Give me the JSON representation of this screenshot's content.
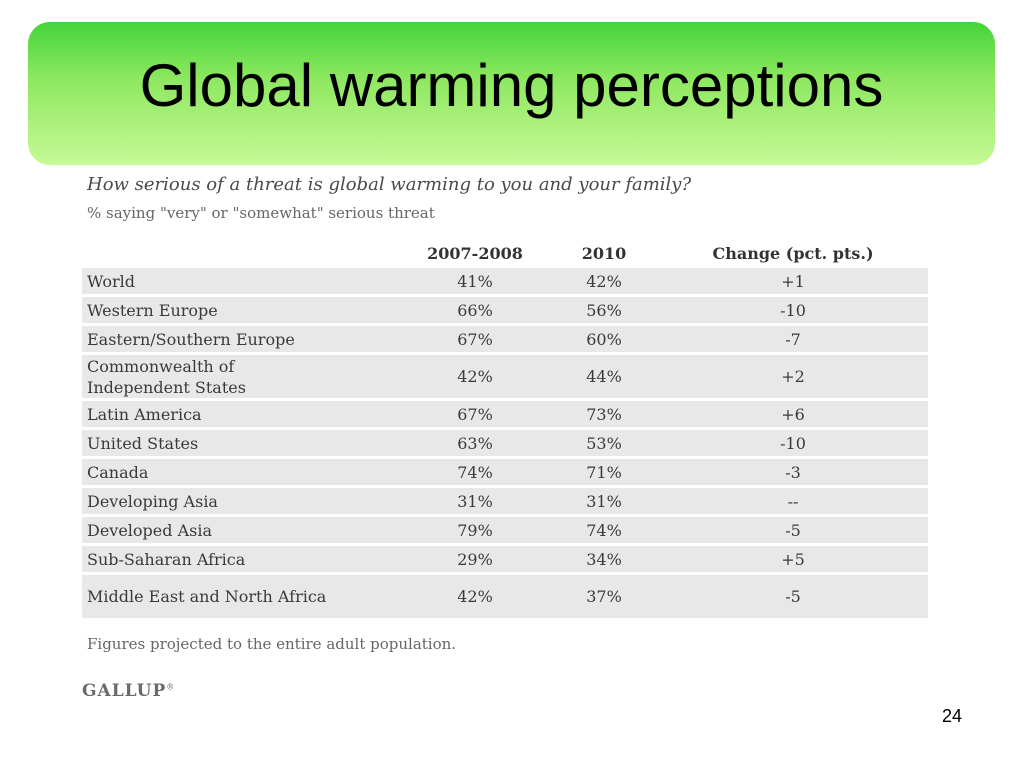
{
  "slide": {
    "title": "Global warming perceptions",
    "page_number": "24"
  },
  "figure": {
    "question": "How serious of a threat is global warming to you and your family?",
    "subtitle": "% saying \"very\" or \"somewhat\" serious threat",
    "columns": [
      "",
      "2007-2008",
      "2010",
      "Change (pct. pts.)"
    ],
    "rows": [
      {
        "region": "World",
        "y2007_2008": "41%",
        "y2010": "42%",
        "change": "+1"
      },
      {
        "region": "Western Europe",
        "y2007_2008": "66%",
        "y2010": "56%",
        "change": "-10"
      },
      {
        "region": "Eastern/Southern Europe",
        "y2007_2008": "67%",
        "y2010": "60%",
        "change": "-7"
      },
      {
        "region": "Commonwealth of Independent States",
        "y2007_2008": "42%",
        "y2010": "44%",
        "change": "+2"
      },
      {
        "region": "Latin America",
        "y2007_2008": "67%",
        "y2010": "73%",
        "change": "+6"
      },
      {
        "region": "United States",
        "y2007_2008": "63%",
        "y2010": "53%",
        "change": "-10"
      },
      {
        "region": "Canada",
        "y2007_2008": "74%",
        "y2010": "71%",
        "change": "-3"
      },
      {
        "region": "Developing Asia",
        "y2007_2008": "31%",
        "y2010": "31%",
        "change": "--"
      },
      {
        "region": "Developed Asia",
        "y2007_2008": "79%",
        "y2010": "74%",
        "change": "-5"
      },
      {
        "region": "Sub-Saharan Africa",
        "y2007_2008": "29%",
        "y2010": "34%",
        "change": "+5"
      },
      {
        "region": "Middle East and North Africa",
        "y2007_2008": "42%",
        "y2010": "37%",
        "change": "-5"
      }
    ],
    "footnote": "Figures projected to the entire adult population.",
    "source_logo": "GALLUP"
  },
  "colors": {
    "banner_top": "#44d43a",
    "banner_bottom": "#c6f996",
    "row_background": "#e8e8e8"
  }
}
